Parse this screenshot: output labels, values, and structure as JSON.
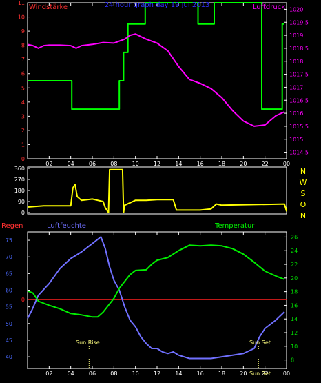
{
  "colors": {
    "background": "#000000",
    "frame": "#ffffff",
    "wind_strength": "#00ff00",
    "pressure": "#ff00ff",
    "wind_direction": "#ffff00",
    "humidity": "#7070ff",
    "temperature": "#00ee00",
    "rain": "#ff2020",
    "left_axis_label": "#ff3030",
    "right_axis_label": "#ff00ff",
    "left_axis_bottom": "#4a6aff",
    "right_axis_bottom": "#00dd00",
    "nwson": "#ffff00",
    "sun_label": "#ffff80",
    "title": "#3030ff"
  },
  "header": {
    "left_label": "Windstärke",
    "title": "24 hour graph day  19 Jul 2013",
    "right_label": "Luftdruck"
  },
  "bottom_labels": {
    "rain": "Regen",
    "humidity": "Luftfeuchte",
    "temperature": "Temperatur",
    "sun_rise": "Sun Rise",
    "sun_set": "Sun Set",
    "sun_set_overlap": "Sun Set"
  },
  "x_ticks": [
    "02",
    "04",
    "06",
    "08",
    "10",
    "12",
    "14",
    "16",
    "18",
    "20",
    "22",
    "00"
  ],
  "chart_data": [
    {
      "type": "line",
      "title": "24 hour graph day  19 Jul 2013",
      "x_unit": "hour of day (0 = 00:00 on 19 Jul, 24 = 00:00 on 20 Jul)",
      "x_range": [
        0,
        24
      ],
      "left_axis": {
        "label": "Windstärke",
        "range": [
          0,
          11
        ],
        "ticks": [
          "0",
          "1",
          "2",
          "3",
          "4",
          "5",
          "6",
          "7",
          "8",
          "9",
          "10",
          "11"
        ]
      },
      "right_axis": {
        "label": "Luftdruck",
        "range": [
          1014.25,
          1020.25
        ],
        "ticks": [
          "1014.5",
          "1015",
          "1015.5",
          "1016",
          "1016.5",
          "1017",
          "1017.5",
          "1018",
          "1018.5",
          "1019",
          "1019.5",
          "1020"
        ]
      },
      "series": [
        {
          "name": "Windstärke",
          "axis": "left",
          "points": [
            [
              0,
              5.5
            ],
            [
              4.1,
              5.5
            ],
            [
              4.1,
              3.5
            ],
            [
              8.5,
              3.5
            ],
            [
              8.5,
              5.5
            ],
            [
              8.9,
              5.5
            ],
            [
              8.9,
              7.5
            ],
            [
              9.3,
              7.5
            ],
            [
              9.3,
              9.5
            ],
            [
              10.9,
              9.5
            ],
            [
              10.9,
              11
            ],
            [
              15.8,
              11
            ],
            [
              15.8,
              9.5
            ],
            [
              17.3,
              9.5
            ],
            [
              17.3,
              11
            ],
            [
              21.7,
              11
            ],
            [
              21.7,
              3.5
            ],
            [
              23.6,
              3.5
            ],
            [
              23.6,
              9.5
            ],
            [
              23.8,
              9.5
            ]
          ]
        },
        {
          "name": "Luftdruck",
          "axis": "right",
          "points": [
            [
              0,
              1018.65
            ],
            [
              0.5,
              1018.6
            ],
            [
              1,
              1018.5
            ],
            [
              1.5,
              1018.6
            ],
            [
              2,
              1018.62
            ],
            [
              3,
              1018.62
            ],
            [
              4,
              1018.6
            ],
            [
              4.5,
              1018.5
            ],
            [
              5,
              1018.6
            ],
            [
              6,
              1018.65
            ],
            [
              7,
              1018.72
            ],
            [
              8,
              1018.7
            ],
            [
              9,
              1018.85
            ],
            [
              9.5,
              1019.0
            ],
            [
              10,
              1019.05
            ],
            [
              10.5,
              1018.95
            ],
            [
              11,
              1018.85
            ],
            [
              12,
              1018.7
            ],
            [
              13,
              1018.4
            ],
            [
              14,
              1017.8
            ],
            [
              15,
              1017.3
            ],
            [
              16,
              1017.15
            ],
            [
              17,
              1016.95
            ],
            [
              18,
              1016.6
            ],
            [
              19,
              1016.1
            ],
            [
              20,
              1015.7
            ],
            [
              21,
              1015.5
            ],
            [
              22,
              1015.55
            ],
            [
              23,
              1015.9
            ],
            [
              23.5,
              1016.0
            ],
            [
              23.8,
              1016.05
            ]
          ]
        }
      ]
    },
    {
      "type": "line",
      "x_range": [
        0,
        24
      ],
      "y_range": [
        0,
        360
      ],
      "y_ticks": [
        "0",
        "90",
        "180",
        "270",
        "360"
      ],
      "right_labels": [
        "N",
        "W",
        "S",
        "O",
        "N"
      ],
      "series": [
        {
          "name": "Wind direction",
          "points": [
            [
              0,
              45
            ],
            [
              1.5,
              55
            ],
            [
              4,
              55
            ],
            [
              4.2,
              200
            ],
            [
              4.4,
              230
            ],
            [
              4.6,
              130
            ],
            [
              5,
              100
            ],
            [
              6,
              110
            ],
            [
              6.5,
              100
            ],
            [
              7,
              90
            ],
            [
              7.2,
              40
            ],
            [
              7.5,
              0
            ],
            [
              7.6,
              350
            ],
            [
              8.8,
              350
            ],
            [
              8.9,
              0
            ],
            [
              9,
              60
            ],
            [
              9.5,
              80
            ],
            [
              10,
              100
            ],
            [
              11,
              100
            ],
            [
              12,
              105
            ],
            [
              13.5,
              105
            ],
            [
              13.8,
              20
            ],
            [
              16,
              20
            ],
            [
              17,
              30
            ],
            [
              17.5,
              70
            ],
            [
              18,
              60
            ],
            [
              23.8,
              70
            ],
            [
              24,
              10
            ]
          ]
        }
      ]
    },
    {
      "type": "line",
      "x_range": [
        0,
        24
      ],
      "left_axis": {
        "label": "Luftfeuchte",
        "range": [
          36.5,
          77.5
        ],
        "ticks": [
          "40",
          "45",
          "50",
          "55",
          "60",
          "65",
          "70",
          "75"
        ]
      },
      "right_axis": {
        "label": "Temperatur",
        "range": [
          6.75,
          26.75
        ],
        "ticks": [
          "8",
          "10",
          "12",
          "14",
          "16",
          "18",
          "20",
          "22",
          "24",
          "26"
        ]
      },
      "rain_axis": {
        "label": "Regen",
        "ticks": [
          "0"
        ]
      },
      "markers": [
        {
          "label": "Sun Rise",
          "x": 5.7
        },
        {
          "label": "Sun Set",
          "x": 21.4
        }
      ],
      "series": [
        {
          "name": "Luftfeuchte",
          "axis": "left",
          "points": [
            [
              0,
              51.5
            ],
            [
              0.4,
              54
            ],
            [
              1,
              58.5
            ],
            [
              2,
              62
            ],
            [
              3,
              66.5
            ],
            [
              4,
              69.5
            ],
            [
              5,
              71.5
            ],
            [
              6,
              74
            ],
            [
              6.8,
              76
            ],
            [
              7.2,
              72.5
            ],
            [
              7.6,
              67
            ],
            [
              8,
              63
            ],
            [
              8.5,
              60
            ],
            [
              9,
              55
            ],
            [
              9.5,
              51
            ],
            [
              10,
              49
            ],
            [
              10.5,
              46
            ],
            [
              11,
              44
            ],
            [
              11.5,
              42.5
            ],
            [
              12,
              42.5
            ],
            [
              12.5,
              41.5
            ],
            [
              13,
              41
            ],
            [
              13.5,
              41.5
            ],
            [
              14,
              40.5
            ],
            [
              15,
              39.5
            ],
            [
              16,
              39.5
            ],
            [
              17,
              39.5
            ],
            [
              18,
              40
            ],
            [
              19,
              40.5
            ],
            [
              20,
              41
            ],
            [
              21,
              42.5
            ],
            [
              21.5,
              46
            ],
            [
              22,
              48.5
            ],
            [
              23,
              51
            ],
            [
              23.8,
              53.5
            ]
          ]
        },
        {
          "name": "Temperatur",
          "axis": "right",
          "points": [
            [
              0,
              18.1
            ],
            [
              0.5,
              17.8
            ],
            [
              1,
              16.6
            ],
            [
              2,
              16.0
            ],
            [
              3,
              15.5
            ],
            [
              4,
              14.8
            ],
            [
              5,
              14.6
            ],
            [
              6,
              14.3
            ],
            [
              6.5,
              14.3
            ],
            [
              7,
              15.0
            ],
            [
              7.5,
              16.0
            ],
            [
              8,
              17.0
            ],
            [
              8.5,
              18.5
            ],
            [
              9,
              19.5
            ],
            [
              9.5,
              20.5
            ],
            [
              10,
              21.1
            ],
            [
              11,
              21.2
            ],
            [
              11.5,
              22.0
            ],
            [
              12,
              22.6
            ],
            [
              13,
              23.0
            ],
            [
              14,
              24.0
            ],
            [
              15,
              24.8
            ],
            [
              16,
              24.7
            ],
            [
              17,
              24.8
            ],
            [
              18,
              24.7
            ],
            [
              19,
              24.3
            ],
            [
              20,
              23.5
            ],
            [
              21,
              22.3
            ],
            [
              22,
              21.0
            ],
            [
              23,
              20.3
            ],
            [
              23.8,
              19.8
            ]
          ]
        },
        {
          "name": "Regen",
          "axis": "rain",
          "points": [
            [
              0,
              0
            ],
            [
              24,
              0
            ]
          ]
        }
      ]
    }
  ]
}
